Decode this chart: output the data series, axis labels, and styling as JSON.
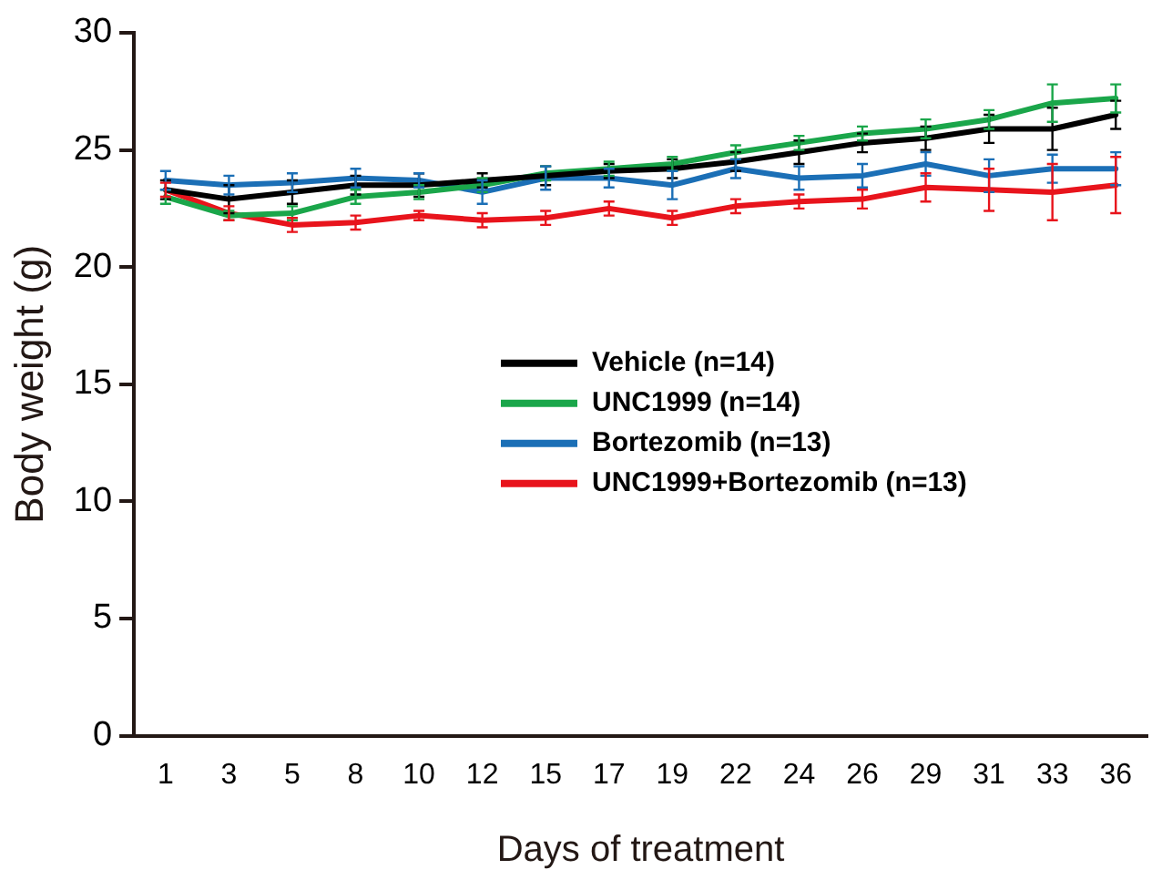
{
  "chart_data": {
    "type": "line",
    "xlabel": "Days of treatment",
    "ylabel": "Body weight (g)",
    "categories": [
      "1",
      "3",
      "5",
      "8",
      "10",
      "12",
      "15",
      "17",
      "19",
      "22",
      "24",
      "26",
      "29",
      "31",
      "33",
      "36"
    ],
    "ylim": [
      0,
      30
    ],
    "yticks": [
      0,
      5,
      10,
      15,
      20,
      25,
      30
    ],
    "grid": false,
    "legend": "right",
    "line_style": "solid",
    "series": [
      {
        "name": "Vehicle (n=14)",
        "color": "#000000",
        "values": [
          23.3,
          22.9,
          23.2,
          23.5,
          23.5,
          23.7,
          23.9,
          24.1,
          24.2,
          24.5,
          24.9,
          25.3,
          25.5,
          25.9,
          25.9,
          26.5
        ],
        "errors": [
          0.4,
          0.6,
          0.5,
          0.4,
          0.5,
          0.3,
          0.4,
          0.3,
          0.4,
          0.4,
          0.5,
          0.4,
          0.5,
          0.6,
          0.9,
          0.6
        ]
      },
      {
        "name": "UNC1999 (n=14)",
        "color": "#1aa64a",
        "values": [
          23.0,
          22.2,
          22.3,
          23.0,
          23.2,
          23.5,
          24.0,
          24.2,
          24.4,
          24.9,
          25.3,
          25.7,
          25.9,
          26.3,
          27.0,
          27.2
        ],
        "errors": [
          0.3,
          0.2,
          0.3,
          0.3,
          0.3,
          0.3,
          0.3,
          0.3,
          0.3,
          0.3,
          0.3,
          0.3,
          0.4,
          0.4,
          0.8,
          0.6
        ]
      },
      {
        "name": "Bortezomib (n=13)",
        "color": "#1b6fb6",
        "values": [
          23.7,
          23.5,
          23.6,
          23.8,
          23.7,
          23.2,
          23.8,
          23.8,
          23.5,
          24.2,
          23.8,
          23.9,
          24.4,
          23.9,
          24.2,
          24.2
        ],
        "errors": [
          0.4,
          0.4,
          0.4,
          0.4,
          0.3,
          0.5,
          0.5,
          0.4,
          0.6,
          0.4,
          0.5,
          0.5,
          0.5,
          0.7,
          0.6,
          0.7
        ]
      },
      {
        "name": "UNC1999+Bortezomib (n=13)",
        "color": "#e8141c",
        "values": [
          23.3,
          22.3,
          21.8,
          21.9,
          22.2,
          22.0,
          22.1,
          22.5,
          22.1,
          22.6,
          22.8,
          22.9,
          23.4,
          23.3,
          23.2,
          23.5
        ],
        "errors": [
          0.3,
          0.3,
          0.3,
          0.3,
          0.2,
          0.3,
          0.3,
          0.3,
          0.3,
          0.3,
          0.3,
          0.4,
          0.6,
          0.9,
          1.2,
          1.2
        ]
      }
    ]
  }
}
